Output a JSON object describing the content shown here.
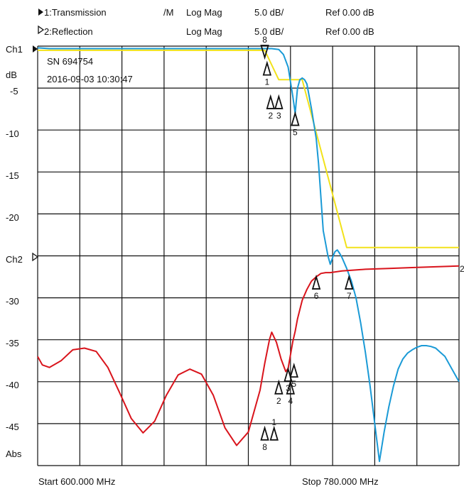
{
  "header": {
    "trace1": {
      "label": "1:Transmission",
      "color": "#1a9ad6",
      "mem": "/M",
      "format": "Log Mag",
      "scale": "5.0 dB/",
      "ref": "Ref  0.00 dB"
    },
    "trace2": {
      "label": "2:Reflection",
      "color": "#d9141c",
      "mem": "",
      "format": "Log Mag",
      "scale": "5.0 dB/",
      "ref": "Ref  0.00 dB"
    }
  },
  "info": {
    "serial": "SN 694754",
    "timestamp": "2016-09-03 10:30:47"
  },
  "axis": {
    "ch1": "Ch1",
    "db_unit": "dB",
    "ch2": "Ch2",
    "abs": "Abs",
    "tick_labels": [
      "-5",
      "-10",
      "-15",
      "-20",
      "-30",
      "-35",
      "-40",
      "-45"
    ],
    "start": "Start 600.000 MHz",
    "stop": "Stop 780.000 MHz"
  },
  "chart_data": {
    "type": "line",
    "x_range_mhz": [
      600,
      780
    ],
    "y_range_db": [
      -50,
      0
    ],
    "grid": true,
    "series": [
      {
        "name": "1:Transmission",
        "color": "#1a9ad6",
        "x": [
          600,
          605,
          615,
          630,
          650,
          670,
          690,
          700,
          703,
          705,
          707,
          709,
          710,
          711,
          712,
          713,
          714,
          715,
          717,
          719,
          720,
          722,
          724,
          725,
          726,
          727,
          728,
          729,
          730,
          732,
          734,
          736,
          738,
          740,
          742,
          744,
          746,
          748,
          750,
          752,
          754,
          756,
          758,
          760,
          762,
          764,
          766,
          768,
          770,
          772,
          774,
          776,
          778,
          780
        ],
        "y": [
          -0.2,
          -0.3,
          -0.3,
          -0.3,
          -0.3,
          -0.3,
          -0.3,
          -0.3,
          -0.4,
          -1,
          -2.5,
          -6,
          -8,
          -5,
          -4,
          -3.8,
          -4,
          -4.5,
          -7.5,
          -11,
          -14,
          -22,
          -25,
          -26,
          -25.2,
          -24.5,
          -24.3,
          -24.7,
          -25.2,
          -26.5,
          -28,
          -30,
          -33,
          -36.5,
          -40.5,
          -45,
          -49.5,
          -46,
          -43,
          -40.5,
          -38.5,
          -37.3,
          -36.6,
          -36.2,
          -35.9,
          -35.7,
          -35.7,
          -35.8,
          -36,
          -36.5,
          -37,
          -38,
          -39,
          -40
        ]
      },
      {
        "name": "2:Reflection",
        "color": "#d9141c",
        "x": [
          600,
          602,
          605,
          610,
          615,
          620,
          625,
          630,
          635,
          640,
          645,
          650,
          655,
          660,
          665,
          670,
          675,
          680,
          685,
          690,
          695,
          697,
          699,
          700,
          702,
          704,
          706,
          707,
          709,
          710,
          711,
          713,
          715,
          717,
          719,
          721,
          723,
          725,
          730,
          740,
          750,
          760,
          770,
          780
        ],
        "y": [
          -37,
          -38,
          -38.3,
          -37.5,
          -36.2,
          -36,
          -36.4,
          -38.3,
          -41.3,
          -44.4,
          -46.1,
          -44.7,
          -41.6,
          -39.2,
          -38.5,
          -39.1,
          -41.6,
          -45.5,
          -47.6,
          -46,
          -41,
          -37.8,
          -35,
          -34.1,
          -35.3,
          -37.3,
          -38.8,
          -38.4,
          -35.2,
          -34,
          -32.5,
          -30.3,
          -29,
          -28,
          -27.5,
          -27.1,
          -27,
          -27,
          -26.8,
          -26.6,
          -26.5,
          -26.4,
          -26.3,
          -26.2
        ]
      },
      {
        "name": "Limit",
        "color": "#f2e21a",
        "x": [
          600,
          697,
          703,
          707,
          713,
          732,
          780
        ],
        "y": [
          -0.5,
          -0.5,
          -4,
          -4,
          -4,
          -24,
          -24
        ]
      }
    ],
    "markers": [
      {
        "label": "1",
        "x": 698,
        "y": -2,
        "anchor": "below"
      },
      {
        "label": "2",
        "x": 699.5,
        "y": -6,
        "anchor": "below"
      },
      {
        "label": "3",
        "x": 703,
        "y": -6,
        "anchor": "below"
      },
      {
        "label": "5",
        "x": 710,
        "y": -8,
        "anchor": "below"
      },
      {
        "label": "6",
        "x": 719,
        "y": -27.5,
        "anchor": "below"
      },
      {
        "label": "7",
        "x": 733,
        "y": -27.5,
        "anchor": "below"
      },
      {
        "label": "1",
        "x": 701,
        "y": -45.5,
        "anchor": "above"
      },
      {
        "label": "2",
        "x": 703,
        "y": -40,
        "anchor": "below"
      },
      {
        "label": "3",
        "x": 707,
        "y": -38.5,
        "anchor": "below"
      },
      {
        "label": "4",
        "x": 708,
        "y": -40,
        "anchor": "below"
      },
      {
        "label": "5",
        "x": 709.5,
        "y": -38,
        "anchor": "below"
      },
      {
        "label": "8",
        "x": 697,
        "y": -45.5,
        "anchor": "below"
      }
    ],
    "top_marker": {
      "label": "8",
      "x": 697
    }
  }
}
